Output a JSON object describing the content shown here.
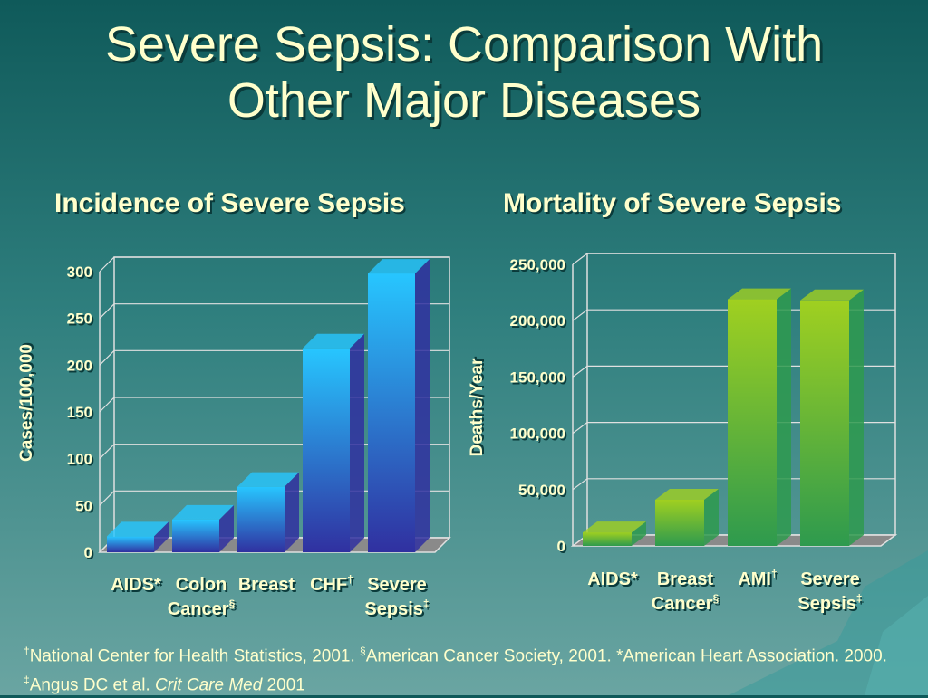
{
  "slide": {
    "title_line1": "Severe Sepsis: Comparison With",
    "title_line2": "Other Major Diseases"
  },
  "chart_data": [
    {
      "type": "bar",
      "title": "Incidence of Severe Sepsis",
      "ylabel": "Cases/100,000",
      "ylim": [
        0,
        300
      ],
      "yticks": [
        "0",
        "50",
        "100",
        "150",
        "200",
        "250",
        "300"
      ],
      "categories": [
        {
          "line1": "AIDS*",
          "line2": ""
        },
        {
          "line1": "Colon",
          "line2": "Cancer",
          "sup": "§"
        },
        {
          "line1": "Breast",
          "line2": "",
          "sup": ""
        },
        {
          "line1": "CHF",
          "line2": "",
          "sup": "†"
        },
        {
          "line1": "Severe",
          "line2": "Sepsis",
          "sup": "‡"
        }
      ],
      "values": [
        17,
        35,
        70,
        218,
        298
      ],
      "colors": {
        "top": "#27c6ff",
        "bottom": "#3030a0"
      }
    },
    {
      "type": "bar",
      "title": "Mortality of Severe Sepsis",
      "ylabel": "Deaths/Year",
      "ylim": [
        0,
        250000
      ],
      "yticks": [
        "0",
        "50,000",
        "100,000",
        "150,000",
        "200,000",
        "250,000"
      ],
      "categories": [
        {
          "line1": "AIDS*",
          "line2": ""
        },
        {
          "line1": "Breast",
          "line2": "Cancer",
          "sup": "§"
        },
        {
          "line1": "AMI",
          "line2": "",
          "sup": "†"
        },
        {
          "line1": "Severe",
          "line2": "Sepsis",
          "sup": "‡"
        }
      ],
      "values": [
        12000,
        41000,
        219000,
        218000
      ],
      "colors": {
        "top": "#a0d020",
        "bottom": "#2e9a4e"
      }
    }
  ],
  "footnote": {
    "s1": "†",
    "t1": "National Center for Health Statistics, 2001. ",
    "s2": "§",
    "t2": "American Cancer Society, 2001. *American Heart Association. 2000. ",
    "s3": "‡",
    "t3": "Angus DC et al. ",
    "journal": "Crit Care Med",
    "year": " 2001"
  },
  "extra_labels": {
    "breast_cancer_line2_left": "Cancer",
    "breast_sup_left": "§"
  }
}
